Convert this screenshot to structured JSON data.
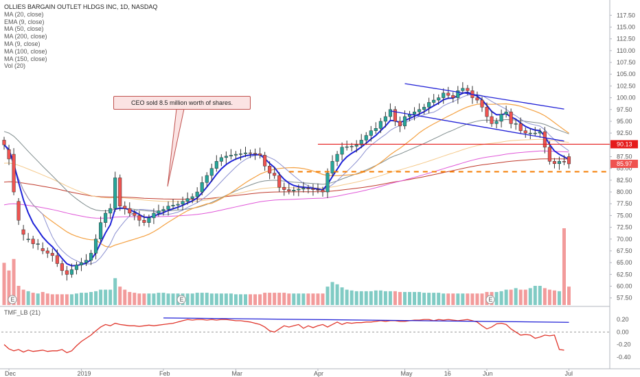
{
  "legend": {
    "title": "OLLIES BARGAIN OUTLET HLDGS INC, 1D, NASDAQ",
    "lines": [
      "MA (20, close)",
      "EMA (9, close)",
      "MA (50, close)",
      "MA (200, close)",
      "MA (9, close)",
      "MA (100, close)",
      "MA (150, close)",
      "Vol (20)"
    ]
  },
  "indicator_label": "TMF_LB (21)",
  "annotation": "CEO sold 8.5 million worth of shares.",
  "earnings_marker": "E",
  "price_tags": {
    "resistance": "90.13",
    "last": "85.97"
  },
  "colors": {
    "up": "#26a69a",
    "down": "#ef5350",
    "vol_up": "#80cbc4",
    "vol_down": "#f29b9b",
    "ema9": "#1e22d8",
    "ma20": "#8a8fd0",
    "ma50": "#f4a040",
    "ma100": "#7f8c8d",
    "ma150": "#f5c98a",
    "ma200": "#c0392b",
    "ma9": "#e056d8",
    "trendline": "#1f1fd6",
    "resistance": "#e51b1b",
    "support": "#f57c00",
    "tmf": "#e0352b"
  },
  "chart_data": [
    {
      "type": "candlestick",
      "title": "OLLIES BARGAIN OUTLET HLDGS INC, 1D, NASDAQ",
      "x_tick_labels": [
        "Dec",
        "2019",
        "Feb",
        "Mar",
        "Apr",
        "May",
        "16",
        "Jun",
        "Jul"
      ],
      "y_tick_labels": [
        "57.50",
        "60.00",
        "62.50",
        "65.00",
        "67.50",
        "70.00",
        "72.50",
        "75.00",
        "77.50",
        "80.00",
        "82.50",
        "85.00",
        "87.50",
        "90.00",
        "92.50",
        "95.00",
        "97.50",
        "100.00",
        "102.50",
        "105.00",
        "107.50",
        "110.00",
        "112.50",
        "115.00",
        "117.50"
      ],
      "ylim": [
        56,
        119
      ],
      "grid": false,
      "close": [
        90,
        87,
        80,
        74,
        71,
        70,
        69,
        69,
        67.5,
        67,
        66.5,
        64.8,
        63.3,
        62.5,
        63.5,
        64.5,
        65,
        65.5,
        67,
        70,
        73.5,
        75.5,
        76.5,
        83,
        77,
        76.5,
        75.5,
        75,
        74,
        73.5,
        74.5,
        75.5,
        76,
        76.3,
        77,
        77.2,
        77.4,
        78,
        78.6,
        79,
        80,
        82,
        83.5,
        85,
        86.5,
        87.3,
        87.6,
        87.8,
        88,
        88.1,
        88.3,
        88.2,
        88.1,
        87.8,
        85.5,
        84,
        83.5,
        81,
        80.5,
        80.2,
        80.4,
        80.6,
        80.8,
        80.7,
        80.5,
        80.4,
        80,
        84,
        86.5,
        88,
        89.5,
        89.6,
        89.7,
        90,
        91,
        92,
        93,
        93.5,
        95,
        96,
        97.5,
        95,
        94,
        96,
        96.5,
        97,
        97.5,
        98,
        99,
        99.5,
        100,
        101,
        100.5,
        100,
        101.5,
        102,
        101.5,
        100,
        99.5,
        98,
        96,
        94.5,
        95,
        96.5,
        97,
        94.5,
        94.5,
        93,
        92.5,
        92.5,
        92.5,
        92.8,
        89.5,
        86.5,
        86,
        86.5,
        86.4,
        85.97
      ],
      "open": [
        91,
        89,
        88,
        78,
        72,
        70,
        70,
        69,
        68,
        67.5,
        67,
        66.5,
        64.8,
        63.3,
        62.5,
        63.5,
        64.5,
        65,
        65.5,
        67,
        70,
        73.5,
        75.5,
        76.5,
        83,
        77,
        76.5,
        75.5,
        75,
        74,
        73.5,
        74.5,
        75.5,
        76,
        76.3,
        77,
        77.2,
        77.4,
        78,
        78.6,
        79,
        80,
        82,
        83.5,
        85,
        86.5,
        87.3,
        87.6,
        87.8,
        88,
        88.1,
        88.3,
        88.2,
        88.1,
        87.8,
        85.5,
        84,
        83.5,
        81,
        80.5,
        80.2,
        80.4,
        80.6,
        80.8,
        80.7,
        80.5,
        80.4,
        80,
        84,
        86.5,
        88,
        89.5,
        89.6,
        89.7,
        90,
        91,
        92,
        93,
        93.5,
        95,
        96,
        97.5,
        95,
        94,
        96,
        96.5,
        97,
        97.5,
        98,
        99,
        99.5,
        100,
        101,
        100.5,
        100,
        101.5,
        102,
        101.5,
        100,
        99.5,
        98,
        96,
        94.5,
        95,
        96.5,
        97,
        94.5,
        94.5,
        93,
        92.5,
        92.5,
        92.5,
        92.8,
        89.5,
        86.5,
        86,
        86.5,
        87.5
      ],
      "y_right_marks": {
        "resistance": 90.13,
        "support": 84.3,
        "last": 85.97
      },
      "volume_relative": [
        0.55,
        0.45,
        0.6,
        0.25,
        0.2,
        0.18,
        0.16,
        0.15,
        0.17,
        0.15,
        0.14,
        0.14,
        0.14,
        0.14,
        0.14,
        0.15,
        0.16,
        0.16,
        0.17,
        0.18,
        0.2,
        0.2,
        0.2,
        0.35,
        0.24,
        0.2,
        0.17,
        0.16,
        0.15,
        0.15,
        0.15,
        0.15,
        0.16,
        0.16,
        0.15,
        0.15,
        0.15,
        0.15,
        0.15,
        0.15,
        0.16,
        0.16,
        0.16,
        0.15,
        0.15,
        0.15,
        0.15,
        0.15,
        0.14,
        0.14,
        0.14,
        0.14,
        0.14,
        0.14,
        0.16,
        0.16,
        0.16,
        0.16,
        0.16,
        0.15,
        0.15,
        0.15,
        0.15,
        0.15,
        0.15,
        0.15,
        0.15,
        0.24,
        0.3,
        0.27,
        0.23,
        0.2,
        0.19,
        0.18,
        0.18,
        0.18,
        0.18,
        0.19,
        0.19,
        0.18,
        0.18,
        0.18,
        0.17,
        0.17,
        0.17,
        0.17,
        0.17,
        0.16,
        0.16,
        0.16,
        0.16,
        0.15,
        0.15,
        0.15,
        0.15,
        0.15,
        0.15,
        0.15,
        0.15,
        0.15,
        0.17,
        0.17,
        0.17,
        0.18,
        0.2,
        0.2,
        0.22,
        0.2,
        0.2,
        0.22,
        0.25,
        0.25,
        0.22,
        0.2,
        0.19,
        0.18,
        1.0,
        0.24
      ],
      "earnings_markers": [
        1,
        36,
        100
      ]
    },
    {
      "type": "line",
      "name": "TMF_LB (21)",
      "y_tick_labels": [
        "0.20",
        "0.00",
        "-0.20",
        "-0.40"
      ],
      "ylim": [
        -0.5,
        0.3
      ],
      "values": [
        -0.2,
        -0.27,
        -0.3,
        -0.28,
        -0.32,
        -0.29,
        -0.31,
        -0.3,
        -0.29,
        -0.31,
        -0.3,
        -0.3,
        -0.28,
        -0.33,
        -0.3,
        -0.22,
        -0.15,
        -0.1,
        -0.05,
        0.02,
        0.08,
        0.12,
        0.1,
        0.14,
        0.12,
        0.11,
        0.1,
        0.1,
        0.09,
        0.1,
        0.11,
        0.1,
        0.11,
        0.12,
        0.13,
        0.14,
        0.16,
        0.18,
        0.2,
        0.19,
        0.2,
        0.2,
        0.19,
        0.2,
        0.19,
        0.2,
        0.2,
        0.19,
        0.18,
        0.18,
        0.17,
        0.16,
        0.14,
        0.12,
        0.08,
        0.02,
        0.0,
        0.05,
        0.1,
        0.08,
        0.1,
        0.12,
        0.06,
        0.1,
        0.07,
        0.1,
        0.12,
        0.08,
        0.12,
        0.16,
        0.12,
        0.15,
        0.14,
        0.15,
        0.15,
        0.16,
        0.16,
        0.17,
        0.18,
        0.17,
        0.18,
        0.18,
        0.17,
        0.17,
        0.18,
        0.19,
        0.19,
        0.2,
        0.2,
        0.18,
        0.2,
        0.19,
        0.2,
        0.19,
        0.18,
        0.19,
        0.2,
        0.18,
        0.16,
        0.1,
        0.05,
        0.08,
        0.13,
        0.14,
        0.12,
        0.05,
        0.0,
        -0.05,
        -0.04,
        -0.05,
        -0.1,
        -0.08,
        -0.05,
        -0.06,
        -0.05,
        -0.28,
        -0.29
      ]
    }
  ]
}
